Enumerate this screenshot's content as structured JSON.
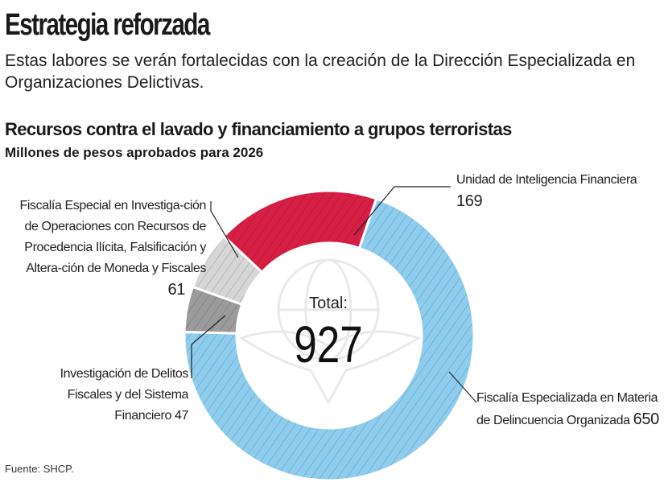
{
  "header": {
    "title": "Estrategia reforzada",
    "subtitle": "Estas labores se verán fortalecidas con la creación de la Dirección Especializada en Organizaciones Delictivas."
  },
  "chart_data": {
    "type": "pie",
    "donut": true,
    "title": "Recursos contra el lavado y financiamiento a grupos terroristas",
    "subtitle": "Millones de pesos aprobados para 2026",
    "center_label": "Total:",
    "total": "927",
    "slices": [
      {
        "label": "Fiscalía Especializada en Materia de Delincuencia Organizada",
        "value": 650,
        "color": "#8ecdee"
      },
      {
        "label": "Investigación de Delitos Fiscales y del Sistema Financiero",
        "value": 47,
        "color": "#9b9b9b"
      },
      {
        "label": "Fiscalía Especial en Investigación de Operaciones con Recursos de Procedencia Ilícita, Falsificación y Alteración de Moneda y Fiscales",
        "value": 61,
        "color": "#d6d6d6"
      },
      {
        "label": "Unidad de Inteligencia Financiera",
        "value": 169,
        "color": "#d71f45"
      }
    ],
    "pattern": "diagonal-hatch"
  },
  "labels": {
    "uif": {
      "text": "Unidad de Inteligencia Financiera",
      "value": "169"
    },
    "fedo": {
      "text": "Fiscalía Especializada en Materia de Delincuencia Organizada",
      "value": "650"
    },
    "fiscalia_especial": {
      "text": "Fiscalía Especial en Investiga-ción de Operaciones con Recursos de Procedencia Ilícita, Falsificación y Altera-ción de Moneda y Fiscales",
      "value": "61"
    },
    "delitos_fiscales": {
      "text": "Investigación de Delitos Fiscales y del Sistema Financiero",
      "value": "47"
    }
  },
  "source": "Fuente: SHCP."
}
